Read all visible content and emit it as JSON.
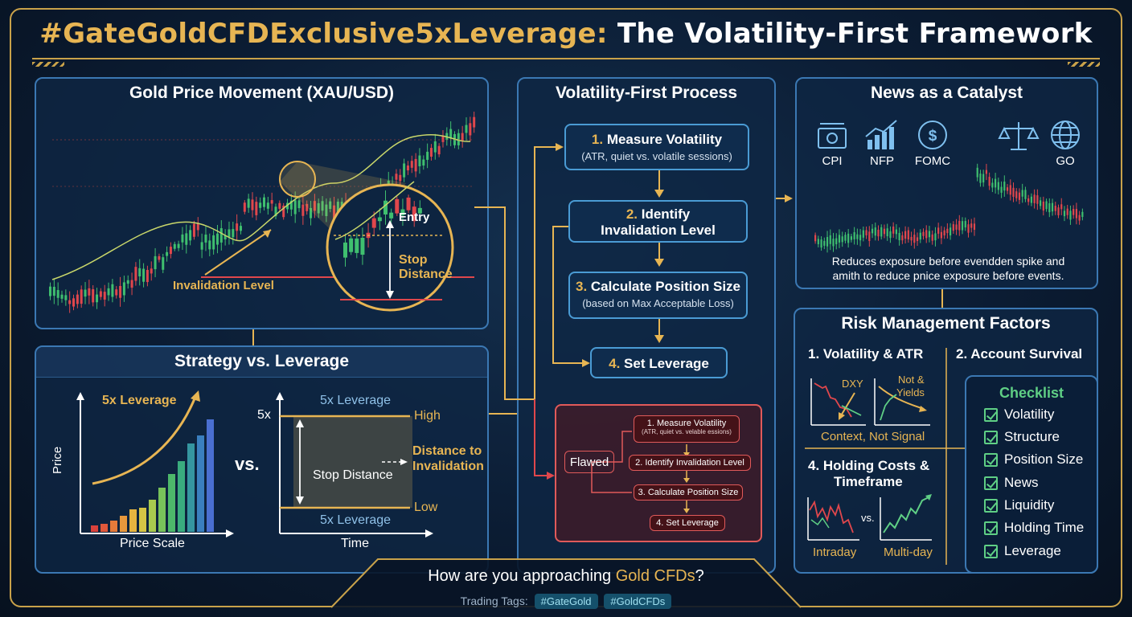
{
  "header": {
    "hashtag": "#GateGoldCFDExclusive5xLeverage:",
    "title": "The Volatility-First Framework"
  },
  "gold_panel": {
    "title": "Gold Price Movement (XAU/USD)",
    "invalidation_label": "Invalidation Level",
    "entry_label": "Entry",
    "stop_label_1": "Stop",
    "stop_label_2": "Distance"
  },
  "strategy_panel": {
    "title": "Strategy vs. Leverage",
    "left_label": "5x Leverage",
    "y_axis": "Price",
    "x_axis": "Price Scale",
    "vs": "vs.",
    "top_leverage": "5x Leverage",
    "tick_5x": "5x",
    "high": "High",
    "stop_distance": "Stop Distance",
    "distance_1": "Distance to",
    "distance_2": "Invalidation",
    "low": "Low",
    "bottom_leverage": "5x Leverage",
    "time": "Time"
  },
  "process_panel": {
    "title": "Volatility-First Process",
    "steps": [
      {
        "num": "1.",
        "title": "Measure Volatility",
        "sub": "(ATR, quiet vs. volatile sessions)"
      },
      {
        "num": "2.",
        "title": "Identify",
        "title2": "Invalidation Level",
        "sub": ""
      },
      {
        "num": "3.",
        "title": "Calculate Position Size",
        "sub": "(based on Max Acceptable Loss)"
      },
      {
        "num": "4.",
        "title": "Set Leverage",
        "sub": ""
      }
    ],
    "flawed": {
      "label": "Flawed",
      "steps": [
        {
          "t": "1. Measure Volatility",
          "s": "(ATR, quiet vs. velable essions)"
        },
        {
          "t": "2. Identify Invalidation Level",
          "s": ""
        },
        {
          "t": "3. Calculate Position Size",
          "s": ""
        },
        {
          "t": "4. Set Leverage",
          "s": ""
        }
      ]
    }
  },
  "news_panel": {
    "title": "News as a Catalyst",
    "icons": [
      {
        "name": "money-icon",
        "label": "CPI"
      },
      {
        "name": "growth-chart-icon",
        "label": "NFP"
      },
      {
        "name": "dollar-coin-icon",
        "label": "FOMC"
      },
      {
        "name": "scales-icon",
        "label": ""
      },
      {
        "name": "globe-icon",
        "label": "GO"
      }
    ],
    "caption_1": "Reduces exposure before evendden spike and",
    "caption_2": "amith to reduce pnice exposure before events."
  },
  "risk_panel": {
    "title": "Risk Management Factors",
    "factor_1": "1. Volatility & ATR",
    "factor_2": "2. Account Survival",
    "dxy": "DXY",
    "not_and": "Not &",
    "yields": "Yields",
    "context": "Context, Not Signal",
    "factor_4_1": "4. Holding Costs &",
    "factor_4_2": "Timeframe",
    "vs": "vs.",
    "intraday": "Intraday",
    "multiday": "Multi-day",
    "checklist_title": "Checklist",
    "checklist": [
      "Volatility",
      "Structure",
      "Position Size",
      "News",
      "Liquidity",
      "Holding Time",
      "Leverage"
    ]
  },
  "footer": {
    "question_pre": "How are you approaching",
    "question_gold": "Gold CFDs",
    "question_post": "?",
    "tags_label": "Trading Tags:",
    "tags": [
      "#GateGold",
      "#GoldCFDs"
    ]
  },
  "colors": {
    "gold": "#e7b553",
    "panel_border": "#3b78b3",
    "bull": "#3fbf6f",
    "bear": "#e0474c",
    "flawed": "#e05a5a",
    "check_green": "#5fcf85"
  }
}
